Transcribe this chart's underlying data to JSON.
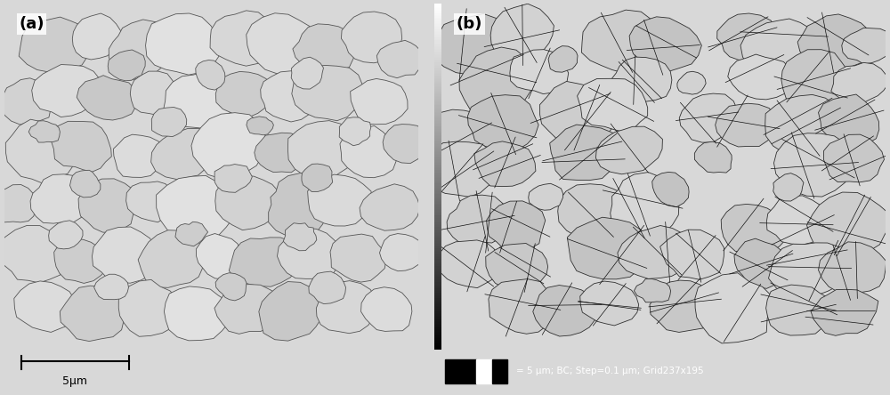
{
  "fig_width": 10.0,
  "fig_height": 4.44,
  "dpi": 100,
  "panel_a_label": "(a)",
  "panel_b_label": "(b)",
  "scale_bar_text_a": "5μm",
  "scale_bar_text_b": "= 5 μm; BC; Step=0.1 μm; Grid237x195",
  "bg_color_a": "#888888",
  "bg_color_b": "#000000",
  "outer_bg": "#d8d8d8",
  "label_bg": "#ffffff",
  "label_color": "#000000",
  "label_fontsize": 13
}
